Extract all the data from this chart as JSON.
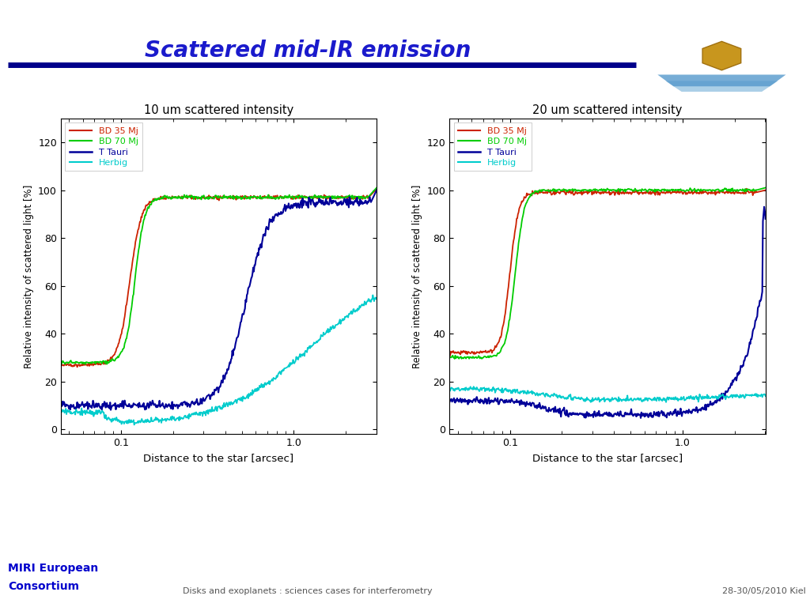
{
  "title": "Scattered mid-IR emission",
  "title_color": "#1a1acc",
  "title_fontsize": 20,
  "background_color": "#ffffff",
  "separator_color": "#00008B",
  "plot1_title": "10 um scattered intensity",
  "plot2_title": "20 um scattered intensity",
  "ylabel": "Relative intensity of scattered light [%]",
  "xlabel": "Distance to the star [arcsec]",
  "legend_labels": [
    "BD 35 Mj",
    "BD 70 Mj",
    "T Tauri",
    "Herbig"
  ],
  "legend_colors": [
    "#cc2200",
    "#00cc00",
    "#000099",
    "#00cccc"
  ],
  "line_colors": [
    "#cc2200",
    "#00cc00",
    "#000099",
    "#00cccc"
  ],
  "ylim": [
    0,
    130
  ],
  "footer_left_line1": "MIRI European",
  "footer_left_line2": "Consortium",
  "footer_center": "Disks and exoplanets : sciences cases for interferometry",
  "footer_right": "28-30/05/2010 Kiel",
  "footer_color_left": "#0000cc"
}
